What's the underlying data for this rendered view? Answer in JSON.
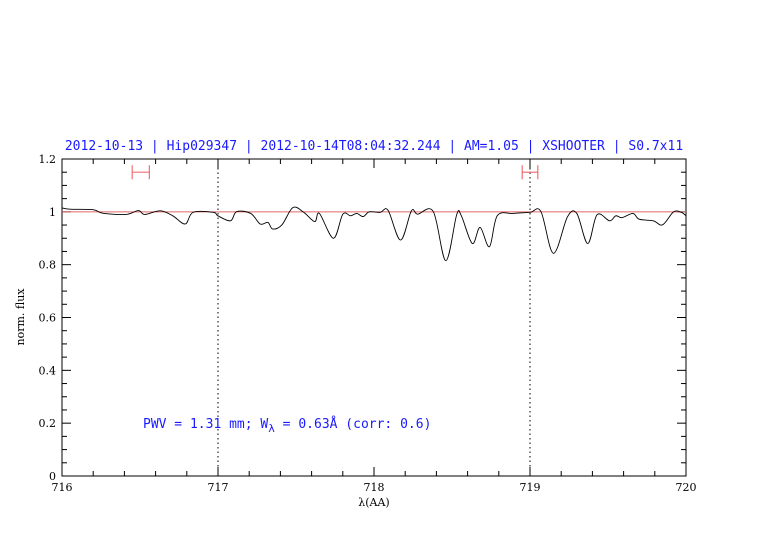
{
  "chart_data": {
    "type": "line",
    "title": "2012-10-13 | Hip029347 | 2012-10-14T08:04:32.244 | AM=1.05 | XSHOOTER | S0.7x11",
    "xlabel": "λ(AA)",
    "ylabel": "norm. flux",
    "xlim": [
      716,
      720
    ],
    "ylim": [
      0,
      1.2
    ],
    "xticks": [
      "716",
      "717",
      "718",
      "719",
      "720"
    ],
    "yticks": [
      "0",
      "0.2",
      "0.4",
      "0.6",
      "0.8",
      "1",
      "1.2"
    ],
    "grid": false,
    "continuum_level": 1.0,
    "reference_lines_x": [
      717,
      719
    ],
    "error_bars": [
      {
        "center": 716.5,
        "low": 716.45,
        "high": 716.56,
        "y": 1.15
      },
      {
        "center": 719.0,
        "low": 718.95,
        "high": 719.05,
        "y": 1.15
      }
    ],
    "annotation": {
      "prefix": "PWV = 1.31 mm; W",
      "subscript": "λ",
      "suffix": " = 0.63Å (corr: 0.6)"
    },
    "colors": {
      "spectrum": "#000000",
      "continuum": "#e06666",
      "error_bars": "#f07070",
      "text": "#1a1aff"
    },
    "series": [
      {
        "x": [
          716.0,
          716.05,
          716.2,
          716.26,
          716.41,
          716.49,
          716.53,
          716.63,
          716.71,
          716.79,
          716.84,
          716.97,
          717.0,
          717.08,
          717.12,
          717.21,
          717.27,
          717.32,
          717.35,
          717.41,
          717.48,
          717.55,
          717.62,
          717.65,
          717.74,
          717.8,
          717.85,
          717.89,
          717.93,
          717.97,
          718.04,
          718.09,
          718.17,
          718.24,
          718.28,
          718.38,
          718.46,
          718.53,
          718.56,
          718.63,
          718.68,
          718.74,
          718.79,
          718.89,
          719.0,
          719.07,
          719.15,
          719.24,
          719.3,
          719.37,
          719.43,
          719.51,
          719.55,
          719.59,
          719.66,
          719.7,
          719.79,
          719.85,
          719.92,
          719.97,
          720.0
        ],
        "y": [
          1.015,
          1.01,
          1.008,
          0.995,
          0.99,
          1.005,
          0.99,
          1.004,
          0.985,
          0.954,
          0.998,
          0.998,
          0.985,
          0.966,
          1.001,
          0.994,
          0.954,
          0.96,
          0.935,
          0.951,
          1.016,
          0.998,
          0.963,
          0.994,
          0.9,
          0.991,
          0.985,
          0.994,
          0.982,
          1.0,
          0.998,
          1.006,
          0.893,
          1.004,
          0.991,
          1.001,
          0.815,
          0.989,
          0.985,
          0.88,
          0.941,
          0.868,
          0.985,
          0.994,
          0.998,
          1.001,
          0.843,
          0.981,
          0.994,
          0.88,
          0.989,
          0.966,
          0.985,
          0.978,
          0.994,
          0.972,
          0.966,
          0.951,
          1.0,
          0.998,
          0.985
        ]
      }
    ]
  }
}
